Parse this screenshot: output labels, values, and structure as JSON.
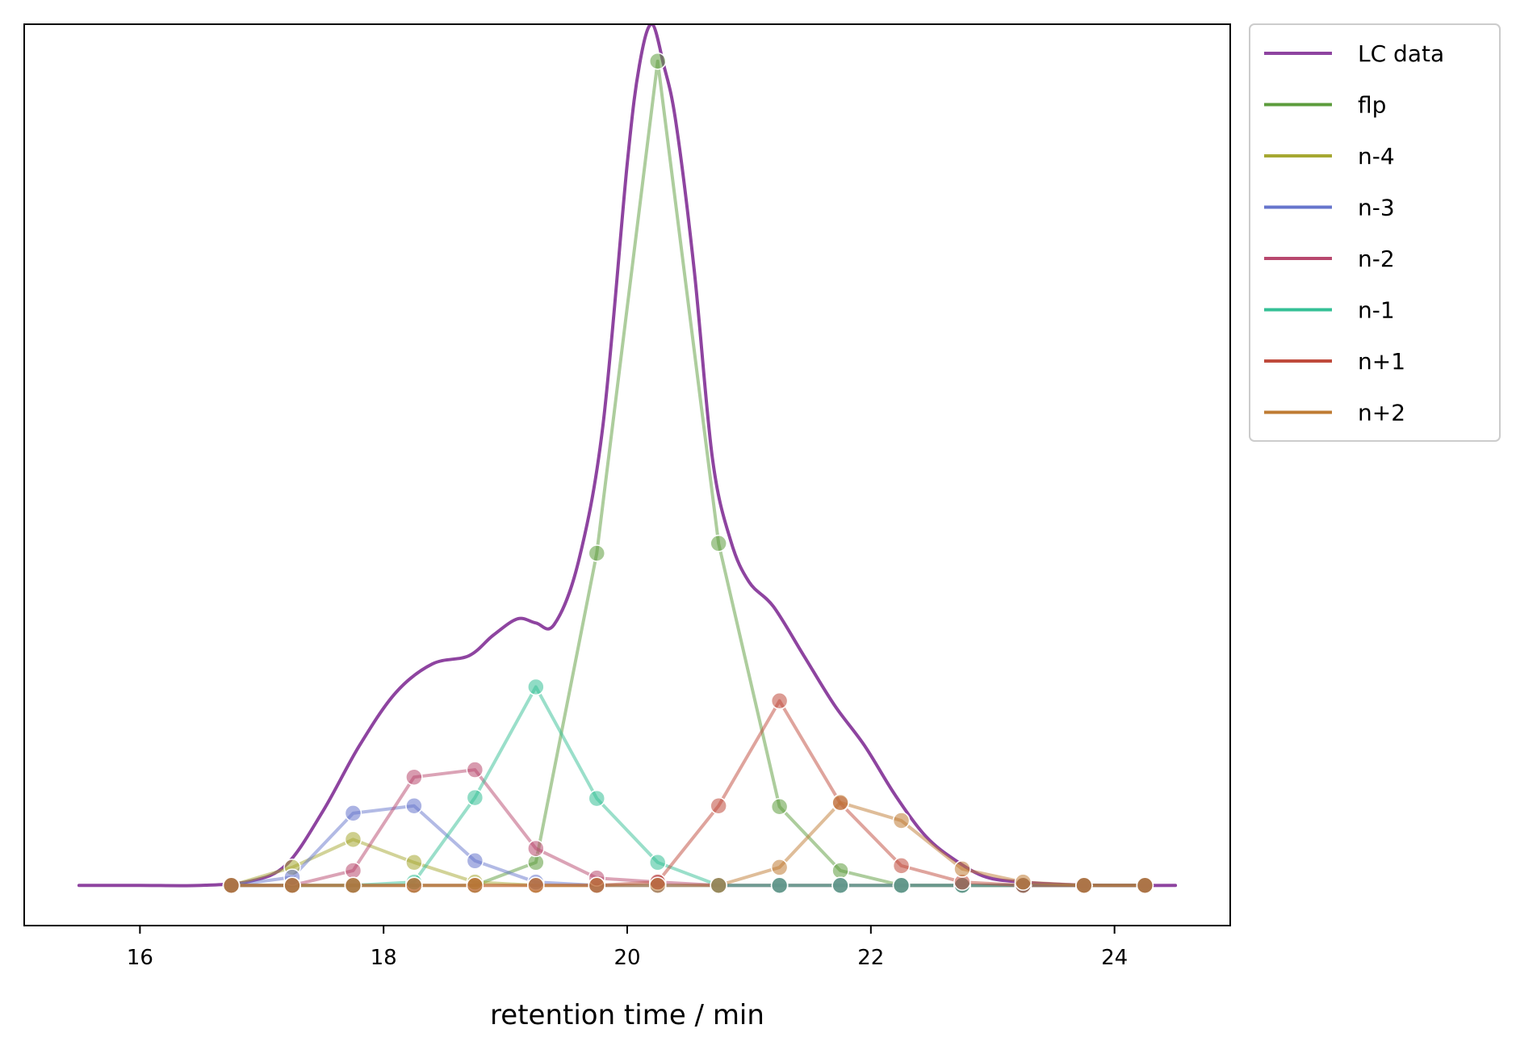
{
  "chart_data": {
    "type": "line",
    "title": "",
    "xlabel": "retention time / min",
    "ylabel": "",
    "xlim": [
      15.05,
      24.95
    ],
    "ylim": [
      -0.049,
      1.05
    ],
    "x_ticks": [
      16,
      18,
      20,
      22,
      24
    ],
    "y_ticks_shown": false,
    "grid": false,
    "legend": {
      "placement": "outside-top-right",
      "entries": [
        "LC data",
        "flp",
        "n-4",
        "n-3",
        "n-2",
        "n-1",
        "n+1",
        "n+2"
      ]
    },
    "series": [
      {
        "name": "LC data",
        "color": "#8e44a0",
        "style": "smooth-line",
        "x": [
          15.5,
          16.0,
          16.5,
          16.9,
          17.2,
          17.5,
          17.8,
          18.1,
          18.4,
          18.7,
          18.9,
          19.1,
          19.25,
          19.4,
          19.6,
          19.8,
          20.0,
          20.1,
          20.2,
          20.3,
          20.4,
          20.55,
          20.7,
          20.85,
          21.0,
          21.2,
          21.45,
          21.7,
          21.95,
          22.2,
          22.45,
          22.7,
          22.95,
          23.25,
          23.6,
          24.0,
          24.5
        ],
        "y": [
          0.0,
          0.0,
          0.0,
          0.005,
          0.025,
          0.09,
          0.17,
          0.235,
          0.27,
          0.28,
          0.305,
          0.325,
          0.32,
          0.318,
          0.395,
          0.56,
          0.88,
          1.0,
          1.05,
          1.0,
          0.93,
          0.75,
          0.52,
          0.42,
          0.37,
          0.34,
          0.28,
          0.22,
          0.17,
          0.11,
          0.06,
          0.03,
          0.01,
          0.004,
          0.001,
          0.0,
          0.0
        ]
      },
      {
        "name": "flp",
        "color": "#5c9c3c",
        "style": "line-markers",
        "x": [
          16.75,
          17.25,
          17.75,
          18.25,
          18.75,
          19.25,
          19.75,
          20.25,
          20.75,
          21.25,
          21.75,
          22.25,
          22.75,
          23.25,
          23.75,
          24.25
        ],
        "y": [
          0.0,
          0.0,
          0.0,
          0.0,
          0.0,
          0.028,
          0.405,
          1.005,
          0.417,
          0.096,
          0.018,
          0.0,
          0.0,
          0.0,
          0.0,
          0.0
        ]
      },
      {
        "name": "n-4",
        "color": "#a6a832",
        "style": "line-markers",
        "x": [
          16.75,
          17.25,
          17.75,
          18.25,
          18.75,
          19.25,
          19.75,
          20.25,
          20.75,
          21.25,
          21.75,
          22.25,
          22.75,
          23.25,
          23.75,
          24.25
        ],
        "y": [
          0.0,
          0.022,
          0.056,
          0.028,
          0.004,
          0.0,
          0.0,
          0.0,
          0.0,
          0.0,
          0.0,
          0.0,
          0.0,
          0.0,
          0.0,
          0.0
        ]
      },
      {
        "name": "n-3",
        "color": "#6675cc",
        "style": "line-markers",
        "x": [
          16.75,
          17.25,
          17.75,
          18.25,
          18.75,
          19.25,
          19.75,
          20.25,
          20.75,
          21.25,
          21.75,
          22.25,
          22.75,
          23.25,
          23.75,
          24.25
        ],
        "y": [
          0.0,
          0.01,
          0.088,
          0.097,
          0.03,
          0.004,
          0.0,
          0.0,
          0.0,
          0.0,
          0.0,
          0.0,
          0.0,
          0.0,
          0.0,
          0.0
        ]
      },
      {
        "name": "n-2",
        "color": "#b8486e",
        "style": "line-markers",
        "x": [
          16.75,
          17.25,
          17.75,
          18.25,
          18.75,
          19.25,
          19.75,
          20.25,
          20.75,
          21.25,
          21.75,
          22.25,
          22.75,
          23.25,
          23.75,
          24.25
        ],
        "y": [
          0.0,
          0.0,
          0.018,
          0.132,
          0.141,
          0.045,
          0.009,
          0.004,
          0.0,
          0.0,
          0.0,
          0.0,
          0.0,
          0.0,
          0.0,
          0.0
        ]
      },
      {
        "name": "n-1",
        "color": "#35c096",
        "style": "line-markers",
        "x": [
          16.75,
          17.25,
          17.75,
          18.25,
          18.75,
          19.25,
          19.75,
          20.25,
          20.75,
          21.25,
          21.75,
          22.25,
          22.75,
          23.25,
          23.75,
          24.25
        ],
        "y": [
          0.0,
          0.0,
          0.0,
          0.004,
          0.107,
          0.242,
          0.106,
          0.028,
          0.0,
          0.0,
          0.0,
          0.0,
          0.0,
          0.0,
          0.0,
          0.0
        ]
      },
      {
        "name": "n+1",
        "color": "#bf4a3c",
        "style": "line-markers",
        "x": [
          16.75,
          17.25,
          17.75,
          18.25,
          18.75,
          19.25,
          19.75,
          20.25,
          20.75,
          21.25,
          21.75,
          22.25,
          22.75,
          23.25,
          23.75,
          24.25
        ],
        "y": [
          0.0,
          0.0,
          0.0,
          0.0,
          0.0,
          0.0,
          0.0,
          0.004,
          0.097,
          0.225,
          0.1,
          0.024,
          0.004,
          0.0,
          0.0,
          0.0
        ]
      },
      {
        "name": "n+2",
        "color": "#bf7c34",
        "style": "line-markers",
        "x": [
          16.75,
          17.25,
          17.75,
          18.25,
          18.75,
          19.25,
          19.75,
          20.25,
          20.75,
          21.25,
          21.75,
          22.25,
          22.75,
          23.25,
          23.75,
          24.25
        ],
        "y": [
          0.0,
          0.0,
          0.0,
          0.0,
          0.0,
          0.0,
          0.0,
          0.0,
          0.0,
          0.022,
          0.101,
          0.079,
          0.02,
          0.004,
          0.0,
          0.0
        ]
      }
    ]
  }
}
